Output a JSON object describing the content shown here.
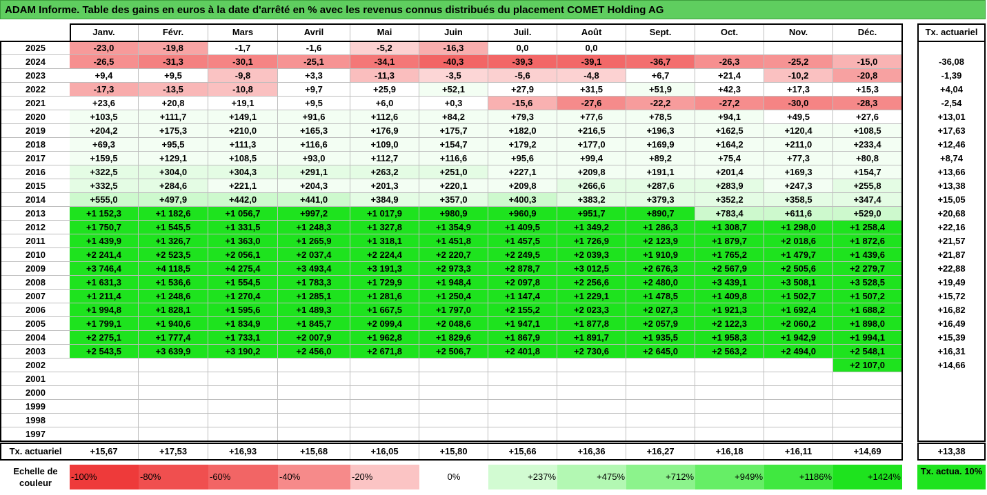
{
  "title": "ADAM Informe. Table des gains en euros à la date d'arrêté en % avec les revenus connus distribués du placement COMET Holding AG",
  "months": [
    "Janv.",
    "Févr.",
    "Mars",
    "Avril",
    "Mai",
    "Juin",
    "Juil.",
    "Août",
    "Sept.",
    "Oct.",
    "Nov.",
    "Déc."
  ],
  "rate_header": "Tx. actuariel",
  "rows": [
    {
      "year": "2025",
      "values": [
        "-23,0",
        "-19,8",
        "-1,7",
        "-1,6",
        "-5,2",
        "-16,3",
        "0,0",
        "0,0",
        "",
        "",
        "",
        ""
      ],
      "rate": ""
    },
    {
      "year": "2024",
      "values": [
        "-26,5",
        "-31,3",
        "-30,1",
        "-25,1",
        "-34,1",
        "-40,3",
        "-39,3",
        "-39,1",
        "-36,7",
        "-26,3",
        "-25,2",
        "-15,0"
      ],
      "rate": "-36,08"
    },
    {
      "year": "2023",
      "values": [
        "+9,4",
        "+9,5",
        "-9,8",
        "+3,3",
        "-11,3",
        "-3,5",
        "-5,6",
        "-4,8",
        "+6,7",
        "+21,4",
        "-10,2",
        "-20,8"
      ],
      "rate": "-1,39"
    },
    {
      "year": "2022",
      "values": [
        "-17,3",
        "-13,5",
        "-10,8",
        "+9,7",
        "+25,9",
        "+52,1",
        "+27,9",
        "+31,5",
        "+51,9",
        "+42,3",
        "+17,3",
        "+15,3"
      ],
      "rate": "+4,04"
    },
    {
      "year": "2021",
      "values": [
        "+23,6",
        "+20,8",
        "+19,1",
        "+9,5",
        "+6,0",
        "+0,3",
        "-15,6",
        "-27,6",
        "-22,2",
        "-27,2",
        "-30,0",
        "-28,3"
      ],
      "rate": "-2,54"
    },
    {
      "year": "2020",
      "values": [
        "+103,5",
        "+111,7",
        "+149,1",
        "+91,6",
        "+112,6",
        "+84,2",
        "+79,3",
        "+77,6",
        "+78,5",
        "+94,1",
        "+49,5",
        "+27,6"
      ],
      "rate": "+13,01"
    },
    {
      "year": "2019",
      "values": [
        "+204,2",
        "+175,3",
        "+210,0",
        "+165,3",
        "+176,9",
        "+175,7",
        "+182,0",
        "+216,5",
        "+196,3",
        "+162,5",
        "+120,4",
        "+108,5"
      ],
      "rate": "+17,63"
    },
    {
      "year": "2018",
      "values": [
        "+69,3",
        "+95,5",
        "+111,3",
        "+116,6",
        "+109,0",
        "+154,7",
        "+179,2",
        "+177,0",
        "+169,9",
        "+164,2",
        "+211,0",
        "+233,4"
      ],
      "rate": "+12,46"
    },
    {
      "year": "2017",
      "values": [
        "+159,5",
        "+129,1",
        "+108,5",
        "+93,0",
        "+112,7",
        "+116,6",
        "+95,6",
        "+99,4",
        "+89,2",
        "+75,4",
        "+77,3",
        "+80,8"
      ],
      "rate": "+8,74"
    },
    {
      "year": "2016",
      "values": [
        "+322,5",
        "+304,0",
        "+304,3",
        "+291,1",
        "+263,2",
        "+251,0",
        "+227,1",
        "+209,8",
        "+191,1",
        "+201,4",
        "+169,3",
        "+154,7"
      ],
      "rate": "+13,66"
    },
    {
      "year": "2015",
      "values": [
        "+332,5",
        "+284,6",
        "+221,1",
        "+204,3",
        "+201,3",
        "+220,1",
        "+209,8",
        "+266,6",
        "+287,6",
        "+283,9",
        "+247,3",
        "+255,8"
      ],
      "rate": "+13,38"
    },
    {
      "year": "2014",
      "values": [
        "+555,0",
        "+497,9",
        "+442,0",
        "+441,0",
        "+384,9",
        "+357,0",
        "+400,3",
        "+383,2",
        "+379,3",
        "+352,2",
        "+358,5",
        "+347,4"
      ],
      "rate": "+15,05"
    },
    {
      "year": "2013",
      "values": [
        "+1 152,3",
        "+1 182,6",
        "+1 056,7",
        "+997,2",
        "+1 017,9",
        "+980,9",
        "+960,9",
        "+951,7",
        "+890,7",
        "+783,4",
        "+611,6",
        "+529,0"
      ],
      "rate": "+20,68"
    },
    {
      "year": "2012",
      "values": [
        "+1 750,7",
        "+1 545,5",
        "+1 331,5",
        "+1 248,3",
        "+1 327,8",
        "+1 354,9",
        "+1 409,5",
        "+1 349,2",
        "+1 286,3",
        "+1 308,7",
        "+1 298,0",
        "+1 258,4"
      ],
      "rate": "+22,16"
    },
    {
      "year": "2011",
      "values": [
        "+1 439,9",
        "+1 326,7",
        "+1 363,0",
        "+1 265,9",
        "+1 318,1",
        "+1 451,8",
        "+1 457,5",
        "+1 726,9",
        "+2 123,9",
        "+1 879,7",
        "+2 018,6",
        "+1 872,6"
      ],
      "rate": "+21,57"
    },
    {
      "year": "2010",
      "values": [
        "+2 241,4",
        "+2 523,5",
        "+2 056,1",
        "+2 037,4",
        "+2 224,4",
        "+2 220,7",
        "+2 249,5",
        "+2 039,3",
        "+1 910,9",
        "+1 765,2",
        "+1 479,7",
        "+1 439,6"
      ],
      "rate": "+21,87"
    },
    {
      "year": "2009",
      "values": [
        "+3 746,4",
        "+4 118,5",
        "+4 275,4",
        "+3 493,4",
        "+3 191,3",
        "+2 973,3",
        "+2 878,7",
        "+3 012,5",
        "+2 676,3",
        "+2 567,9",
        "+2 505,6",
        "+2 279,7"
      ],
      "rate": "+22,88"
    },
    {
      "year": "2008",
      "values": [
        "+1 631,3",
        "+1 536,6",
        "+1 554,5",
        "+1 783,3",
        "+1 729,9",
        "+1 948,4",
        "+2 097,8",
        "+2 256,6",
        "+2 480,0",
        "+3 439,1",
        "+3 508,1",
        "+3 528,5"
      ],
      "rate": "+19,49"
    },
    {
      "year": "2007",
      "values": [
        "+1 211,4",
        "+1 248,6",
        "+1 270,4",
        "+1 285,1",
        "+1 281,6",
        "+1 250,4",
        "+1 147,4",
        "+1 229,1",
        "+1 478,5",
        "+1 409,8",
        "+1 502,7",
        "+1 507,2"
      ],
      "rate": "+15,72"
    },
    {
      "year": "2006",
      "values": [
        "+1 994,8",
        "+1 828,1",
        "+1 595,6",
        "+1 489,3",
        "+1 667,5",
        "+1 797,0",
        "+2 155,2",
        "+2 023,3",
        "+2 027,3",
        "+1 921,3",
        "+1 692,4",
        "+1 688,2"
      ],
      "rate": "+16,82"
    },
    {
      "year": "2005",
      "values": [
        "+1 799,1",
        "+1 940,6",
        "+1 834,9",
        "+1 845,7",
        "+2 099,4",
        "+2 048,6",
        "+1 947,1",
        "+1 877,8",
        "+2 057,9",
        "+2 122,3",
        "+2 060,2",
        "+1 898,0"
      ],
      "rate": "+16,49"
    },
    {
      "year": "2004",
      "values": [
        "+2 275,1",
        "+1 777,4",
        "+1 733,1",
        "+2 007,9",
        "+1 962,8",
        "+1 829,6",
        "+1 867,9",
        "+1 891,7",
        "+1 935,5",
        "+1 958,3",
        "+1 942,9",
        "+1 994,1"
      ],
      "rate": "+15,39"
    },
    {
      "year": "2003",
      "values": [
        "+2 543,5",
        "+3 639,9",
        "+3 190,2",
        "+2 456,0",
        "+2 671,8",
        "+2 506,7",
        "+2 401,8",
        "+2 730,6",
        "+2 645,0",
        "+2 563,2",
        "+2 494,0",
        "+2 548,1"
      ],
      "rate": "+16,31"
    },
    {
      "year": "2002",
      "values": [
        "",
        "",
        "",
        "",
        "",
        "",
        "",
        "",
        "",
        "",
        "",
        "+2 107,0"
      ],
      "rate": "+14,66"
    },
    {
      "year": "2001",
      "values": [
        "",
        "",
        "",
        "",
        "",
        "",
        "",
        "",
        "",
        "",
        "",
        ""
      ],
      "rate": ""
    },
    {
      "year": "2000",
      "values": [
        "",
        "",
        "",
        "",
        "",
        "",
        "",
        "",
        "",
        "",
        "",
        ""
      ],
      "rate": ""
    },
    {
      "year": "1999",
      "values": [
        "",
        "",
        "",
        "",
        "",
        "",
        "",
        "",
        "",
        "",
        "",
        ""
      ],
      "rate": ""
    },
    {
      "year": "1998",
      "values": [
        "",
        "",
        "",
        "",
        "",
        "",
        "",
        "",
        "",
        "",
        "",
        ""
      ],
      "rate": ""
    },
    {
      "year": "1997",
      "values": [
        "",
        "",
        "",
        "",
        "",
        "",
        "",
        "",
        "",
        "",
        "",
        ""
      ],
      "rate": ""
    }
  ],
  "footer": {
    "label": "Tx. actuariel",
    "values": [
      "+15,67",
      "+17,53",
      "+16,93",
      "+15,68",
      "+16,05",
      "+15,80",
      "+15,66",
      "+16,36",
      "+16,27",
      "+16,18",
      "+16,11",
      "+14,69"
    ],
    "total": "+13,38"
  },
  "legend": {
    "label": "Echelle de couleur",
    "items": [
      {
        "text": "-100%",
        "color": "#ee3a3a",
        "align": "left"
      },
      {
        "text": "-80%",
        "color": "#f04f4f",
        "align": "left"
      },
      {
        "text": "-60%",
        "color": "#f26565",
        "align": "left"
      },
      {
        "text": "-40%",
        "color": "#f68a8a",
        "align": "left"
      },
      {
        "text": "-20%",
        "color": "#fbc4c4",
        "align": "left"
      },
      {
        "text": "0%",
        "color": "#ffffff",
        "align": "center"
      },
      {
        "text": "+237%",
        "color": "#d2fbd2",
        "align": "right"
      },
      {
        "text": "+475%",
        "color": "#b3f8b3",
        "align": "right"
      },
      {
        "text": "+712%",
        "color": "#8cf38c",
        "align": "right"
      },
      {
        "text": "+949%",
        "color": "#66ee66",
        "align": "right"
      },
      {
        "text": "+1186%",
        "color": "#40e840",
        "align": "right"
      },
      {
        "text": "+1424%",
        "color": "#1ee31e",
        "align": "right"
      }
    ],
    "rate_item": {
      "text": "Tx. actua. 10%",
      "color": "#1ee31e"
    }
  },
  "colors": {
    "title_bg": "#5fce5f",
    "neg_strong": "#f26565",
    "neg_weak": "#fde1e1",
    "pos_weak": "#eefdee",
    "pos_strong": "#1ee31e"
  }
}
